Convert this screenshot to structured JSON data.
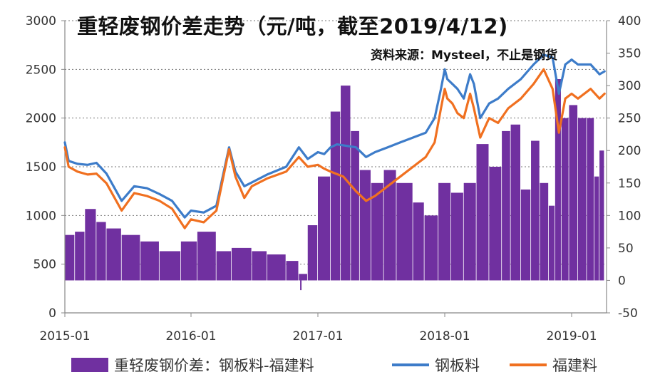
{
  "chart_data": {
    "type": "bar+line",
    "title": "重轻废钢价差走势（元/吨，截至2019/4/12)",
    "source": "资料来源：Mysteel，不止是钢货",
    "x_ticks": [
      "2015-01",
      "2016-01",
      "2017-01",
      "2018-01",
      "2019-01"
    ],
    "left_axis": {
      "ylim": [
        0,
        3000
      ],
      "ticks": [
        0,
        500,
        1000,
        1500,
        2000,
        2500,
        3000
      ]
    },
    "right_axis": {
      "ylim": [
        -50,
        400
      ],
      "ticks": [
        -50,
        0,
        50,
        100,
        150,
        200,
        250,
        300,
        350,
        400
      ]
    },
    "grid": "horizontal-dotted",
    "legend_position": "bottom",
    "colors": {
      "bar": "#7030a0",
      "steel_plate": "#3d7cc9",
      "fujian": "#f07020",
      "axis": "#888888",
      "grid": "#777777"
    },
    "x_range": [
      2015.0,
      2019.29
    ],
    "series": [
      {
        "name": "钢板料",
        "axis": "left",
        "type": "line",
        "points": [
          [
            2015.0,
            1750
          ],
          [
            2015.03,
            1560
          ],
          [
            2015.1,
            1530
          ],
          [
            2015.18,
            1520
          ],
          [
            2015.25,
            1540
          ],
          [
            2015.33,
            1430
          ],
          [
            2015.45,
            1150
          ],
          [
            2015.55,
            1300
          ],
          [
            2015.65,
            1280
          ],
          [
            2015.75,
            1220
          ],
          [
            2015.85,
            1150
          ],
          [
            2015.95,
            980
          ],
          [
            2016.0,
            1050
          ],
          [
            2016.1,
            1030
          ],
          [
            2016.2,
            1100
          ],
          [
            2016.3,
            1700
          ],
          [
            2016.35,
            1450
          ],
          [
            2016.42,
            1300
          ],
          [
            2016.48,
            1340
          ],
          [
            2016.6,
            1420
          ],
          [
            2016.75,
            1500
          ],
          [
            2016.85,
            1700
          ],
          [
            2016.92,
            1580
          ],
          [
            2017.0,
            1650
          ],
          [
            2017.05,
            1630
          ],
          [
            2017.1,
            1700
          ],
          [
            2017.15,
            1730
          ],
          [
            2017.2,
            1720
          ],
          [
            2017.3,
            1700
          ],
          [
            2017.38,
            1600
          ],
          [
            2017.45,
            1650
          ],
          [
            2017.55,
            1700
          ],
          [
            2017.65,
            1750
          ],
          [
            2017.75,
            1800
          ],
          [
            2017.85,
            1850
          ],
          [
            2017.92,
            2000
          ],
          [
            2017.97,
            2300
          ],
          [
            2018.0,
            2500
          ],
          [
            2018.02,
            2400
          ],
          [
            2018.06,
            2350
          ],
          [
            2018.1,
            2300
          ],
          [
            2018.15,
            2200
          ],
          [
            2018.2,
            2450
          ],
          [
            2018.23,
            2350
          ],
          [
            2018.28,
            2000
          ],
          [
            2018.35,
            2150
          ],
          [
            2018.42,
            2200
          ],
          [
            2018.5,
            2300
          ],
          [
            2018.6,
            2400
          ],
          [
            2018.7,
            2550
          ],
          [
            2018.78,
            2650
          ],
          [
            2018.85,
            2620
          ],
          [
            2018.9,
            2250
          ],
          [
            2018.95,
            2550
          ],
          [
            2019.0,
            2600
          ],
          [
            2019.05,
            2550
          ],
          [
            2019.15,
            2550
          ],
          [
            2019.22,
            2450
          ],
          [
            2019.26,
            2480
          ]
        ]
      },
      {
        "name": "福建料",
        "axis": "left",
        "type": "line",
        "points": [
          [
            2015.0,
            1700
          ],
          [
            2015.03,
            1500
          ],
          [
            2015.1,
            1450
          ],
          [
            2015.18,
            1420
          ],
          [
            2015.25,
            1430
          ],
          [
            2015.33,
            1330
          ],
          [
            2015.45,
            1050
          ],
          [
            2015.55,
            1230
          ],
          [
            2015.65,
            1200
          ],
          [
            2015.75,
            1150
          ],
          [
            2015.85,
            1070
          ],
          [
            2015.95,
            870
          ],
          [
            2016.0,
            960
          ],
          [
            2016.1,
            930
          ],
          [
            2016.2,
            1050
          ],
          [
            2016.3,
            1680
          ],
          [
            2016.35,
            1400
          ],
          [
            2016.42,
            1180
          ],
          [
            2016.48,
            1300
          ],
          [
            2016.6,
            1380
          ],
          [
            2016.75,
            1450
          ],
          [
            2016.85,
            1600
          ],
          [
            2016.92,
            1500
          ],
          [
            2017.0,
            1520
          ],
          [
            2017.05,
            1480
          ],
          [
            2017.1,
            1450
          ],
          [
            2017.2,
            1400
          ],
          [
            2017.3,
            1250
          ],
          [
            2017.38,
            1150
          ],
          [
            2017.45,
            1200
          ],
          [
            2017.55,
            1300
          ],
          [
            2017.65,
            1400
          ],
          [
            2017.75,
            1500
          ],
          [
            2017.85,
            1600
          ],
          [
            2017.92,
            1750
          ],
          [
            2017.97,
            2100
          ],
          [
            2018.0,
            2300
          ],
          [
            2018.02,
            2200
          ],
          [
            2018.06,
            2150
          ],
          [
            2018.1,
            2050
          ],
          [
            2018.15,
            2000
          ],
          [
            2018.2,
            2250
          ],
          [
            2018.23,
            2100
          ],
          [
            2018.28,
            1800
          ],
          [
            2018.35,
            2000
          ],
          [
            2018.42,
            1950
          ],
          [
            2018.5,
            2100
          ],
          [
            2018.6,
            2200
          ],
          [
            2018.7,
            2350
          ],
          [
            2018.78,
            2500
          ],
          [
            2018.85,
            2300
          ],
          [
            2018.9,
            1850
          ],
          [
            2018.95,
            2200
          ],
          [
            2019.0,
            2250
          ],
          [
            2019.05,
            2200
          ],
          [
            2019.15,
            2300
          ],
          [
            2019.22,
            2200
          ],
          [
            2019.26,
            2250
          ]
        ]
      },
      {
        "name": "重轻废钢价差：钢板料-福建料",
        "axis": "right",
        "type": "bar",
        "segments": [
          [
            2015.0,
            2015.08,
            70
          ],
          [
            2015.08,
            2015.16,
            75
          ],
          [
            2015.16,
            2015.25,
            110
          ],
          [
            2015.25,
            2015.33,
            90
          ],
          [
            2015.33,
            2015.45,
            80
          ],
          [
            2015.45,
            2015.6,
            70
          ],
          [
            2015.6,
            2015.75,
            60
          ],
          [
            2015.75,
            2015.92,
            45
          ],
          [
            2015.92,
            2016.05,
            60
          ],
          [
            2016.05,
            2016.2,
            75
          ],
          [
            2016.2,
            2016.32,
            45
          ],
          [
            2016.32,
            2016.48,
            50
          ],
          [
            2016.48,
            2016.6,
            45
          ],
          [
            2016.6,
            2016.75,
            40
          ],
          [
            2016.75,
            2016.85,
            30
          ],
          [
            2016.85,
            2016.92,
            10
          ],
          [
            2016.92,
            2017.0,
            85
          ],
          [
            2017.0,
            2017.1,
            160
          ],
          [
            2017.1,
            2017.18,
            260
          ],
          [
            2017.18,
            2017.26,
            300
          ],
          [
            2017.26,
            2017.33,
            230
          ],
          [
            2017.33,
            2017.42,
            170
          ],
          [
            2017.42,
            2017.52,
            150
          ],
          [
            2017.52,
            2017.62,
            170
          ],
          [
            2017.62,
            2017.75,
            150
          ],
          [
            2017.75,
            2017.84,
            120
          ],
          [
            2017.84,
            2017.95,
            100
          ],
          [
            2017.95,
            2018.05,
            150
          ],
          [
            2018.05,
            2018.15,
            135
          ],
          [
            2018.15,
            2018.25,
            150
          ],
          [
            2018.25,
            2018.35,
            210
          ],
          [
            2018.35,
            2018.45,
            175
          ],
          [
            2018.45,
            2018.52,
            230
          ],
          [
            2018.52,
            2018.6,
            240
          ],
          [
            2018.6,
            2018.68,
            140
          ],
          [
            2018.68,
            2018.75,
            215
          ],
          [
            2018.75,
            2018.82,
            150
          ],
          [
            2018.82,
            2018.87,
            115
          ],
          [
            2018.87,
            2018.92,
            310
          ],
          [
            2018.92,
            2018.98,
            250
          ],
          [
            2018.98,
            2019.05,
            270
          ],
          [
            2019.05,
            2019.12,
            250
          ],
          [
            2019.12,
            2019.18,
            250
          ],
          [
            2019.18,
            2019.22,
            160
          ],
          [
            2019.22,
            2019.26,
            200
          ]
        ]
      }
    ]
  }
}
